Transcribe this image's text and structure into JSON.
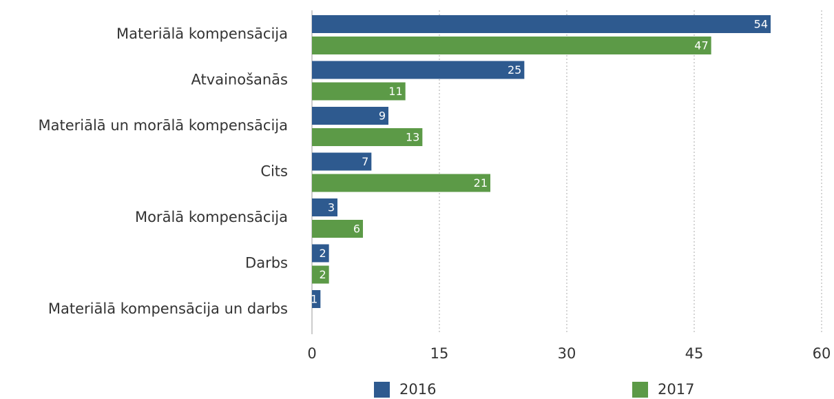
{
  "chart_data": {
    "type": "bar",
    "orientation": "horizontal",
    "categories": [
      "Materiālā kompensācija",
      "Atvainošanās",
      "Materiālā un morālā kompensācija",
      "Cits",
      "Morālā kompensācija",
      "Darbs",
      "Materiālā kompensācija un darbs"
    ],
    "series": [
      {
        "name": "2016",
        "color": "#2e5a8f",
        "values": [
          54,
          25,
          9,
          7,
          3,
          2,
          1
        ]
      },
      {
        "name": "2017",
        "color": "#5c9a47",
        "values": [
          47,
          11,
          13,
          21,
          6,
          2,
          null
        ]
      }
    ],
    "xlim": [
      0,
      60
    ],
    "xticks": [
      0,
      15,
      30,
      45,
      60
    ],
    "grid": true,
    "legend": "bottom"
  }
}
